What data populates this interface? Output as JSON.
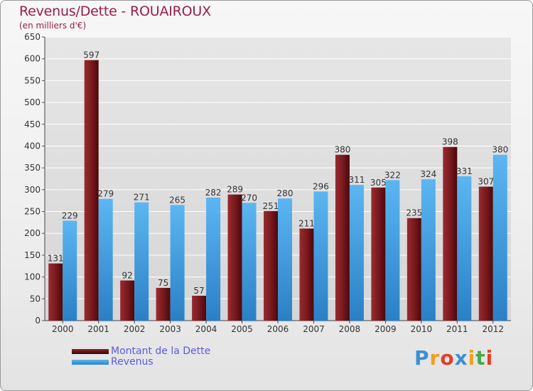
{
  "chart_data": {
    "type": "bar",
    "title": "Revenus/Dette - ROUAIROUX",
    "subtitle": "(en milliers d'€)",
    "xlabel": "",
    "ylabel": "",
    "ylim": [
      0,
      650
    ],
    "yticks": [
      0,
      50,
      100,
      150,
      200,
      250,
      300,
      350,
      400,
      450,
      500,
      550,
      600,
      650
    ],
    "grid": true,
    "categories": [
      "2000",
      "2001",
      "2002",
      "2003",
      "2004",
      "2005",
      "2006",
      "2007",
      "2008",
      "2009",
      "2010",
      "2011",
      "2012"
    ],
    "series": [
      {
        "name": "Montant de la Dette",
        "color": "#7a1a1e",
        "values": [
          131,
          597,
          92,
          75,
          57,
          289,
          251,
          211,
          380,
          305,
          235,
          398,
          307
        ]
      },
      {
        "name": "Revenus",
        "color": "#3f9ee0",
        "values": [
          229,
          279,
          271,
          265,
          282,
          270,
          280,
          296,
          311,
          322,
          324,
          331,
          380
        ]
      }
    ],
    "legend_position": "bottom-left"
  },
  "legend": {
    "dette_label": "Montant de la Dette",
    "revenus_label": "Revenus"
  },
  "logo": {
    "letters": [
      "P",
      "r",
      "o",
      "x",
      "i",
      "t",
      "i"
    ],
    "colors": [
      "#3b8fd6",
      "#f0a020",
      "#e0402a",
      "#3b8fd6",
      "#f0a020",
      "#4aa84a",
      "#e0402a"
    ]
  }
}
